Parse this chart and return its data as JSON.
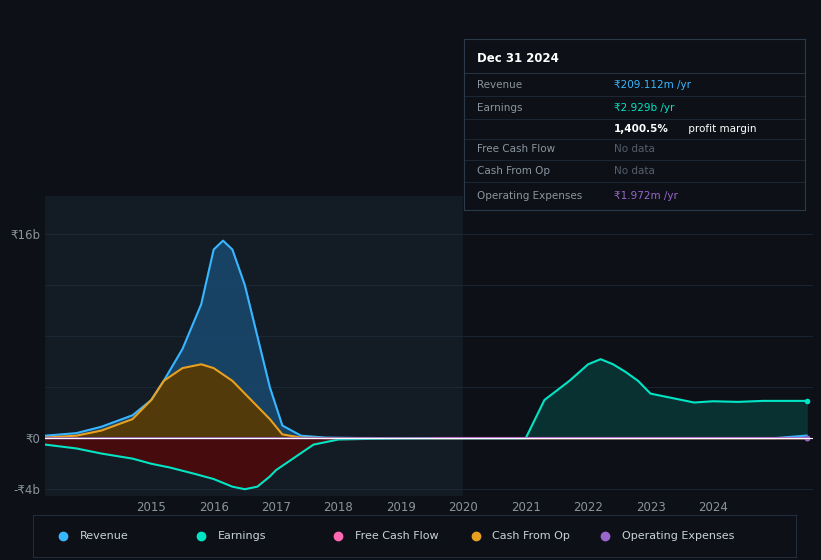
{
  "bg_color": "#0d1117",
  "plot_bg_color": "#131b24",
  "plot_bg_right": "#0d1117",
  "grid_color": "#1e2d3d",
  "text_color": "#8b949e",
  "zero_line_color": "#ffffff",
  "ylim_min": -4500000000,
  "ylim_max": 19000000000,
  "xlim_start": 2013.3,
  "xlim_end": 2025.6,
  "xticks": [
    2015,
    2016,
    2017,
    2018,
    2019,
    2020,
    2021,
    2022,
    2023,
    2024
  ],
  "ytick_neg4b_val": -4000000000,
  "ytick_0_val": 0,
  "ytick_16b_val": 16000000000,
  "revenue_color": "#38b6ff",
  "earnings_color": "#00e5c5",
  "cashflow_color": "#ff69b4",
  "cashfromop_color": "#e8a020",
  "opex_color": "#9966cc",
  "revenue_fill": "#1a4a70",
  "earnings_fill_pos": "#0a3535",
  "earnings_fill_neg": "#500a0a",
  "cashfromop_fill": "#5a3a00",
  "info_box_bg": "#0d1117",
  "info_box_border": "#2a3a4a",
  "revenue_x": [
    2013.3,
    2013.8,
    2014.2,
    2014.7,
    2015.0,
    2015.2,
    2015.5,
    2015.8,
    2016.0,
    2016.15,
    2016.3,
    2016.5,
    2016.7,
    2016.9,
    2017.1,
    2017.4,
    2017.8,
    2018.3,
    2019.0,
    2020.0,
    2021.0,
    2022.0,
    2023.0,
    2024.0,
    2025.0,
    2025.5
  ],
  "revenue_y": [
    0.2,
    0.4,
    0.9,
    1.8,
    3.0,
    4.5,
    7.0,
    10.5,
    14.8,
    15.5,
    14.8,
    12.0,
    8.0,
    4.0,
    1.0,
    0.2,
    0.05,
    0.02,
    0.01,
    0.01,
    0.01,
    0.01,
    0.01,
    0.01,
    0.01,
    0.209
  ],
  "earnings_x": [
    2013.3,
    2013.8,
    2014.2,
    2014.7,
    2015.0,
    2015.3,
    2015.7,
    2016.0,
    2016.3,
    2016.5,
    2016.7,
    2016.9,
    2017.0,
    2017.3,
    2017.6,
    2018.0,
    2018.5,
    2019.0,
    2019.5,
    2020.0,
    2020.3,
    2020.7,
    2021.0,
    2021.3,
    2021.7,
    2022.0,
    2022.2,
    2022.4,
    2022.6,
    2022.8,
    2023.0,
    2023.3,
    2023.7,
    2024.0,
    2024.4,
    2024.8,
    2025.0,
    2025.5
  ],
  "earnings_y": [
    -0.5,
    -0.8,
    -1.2,
    -1.6,
    -2.0,
    -2.3,
    -2.8,
    -3.2,
    -3.8,
    -4.0,
    -3.8,
    -3.0,
    -2.5,
    -1.5,
    -0.5,
    -0.1,
    -0.05,
    -0.02,
    -0.01,
    0.0,
    0.0,
    0.0,
    0.0,
    3.0,
    4.5,
    5.8,
    6.2,
    5.8,
    5.2,
    4.5,
    3.5,
    3.2,
    2.8,
    2.9,
    2.85,
    2.929,
    2.929,
    2.929
  ],
  "cashfromop_x": [
    2013.3,
    2013.8,
    2014.2,
    2014.7,
    2015.0,
    2015.2,
    2015.5,
    2015.8,
    2016.0,
    2016.3,
    2016.6,
    2016.9,
    2017.1,
    2017.4,
    2017.8,
    2018.3,
    2019.0,
    2020.0,
    2021.0,
    2022.0,
    2023.0,
    2024.0,
    2025.0,
    2025.5
  ],
  "cashfromop_y": [
    0.05,
    0.2,
    0.6,
    1.5,
    3.0,
    4.5,
    5.5,
    5.8,
    5.5,
    4.5,
    3.0,
    1.5,
    0.3,
    0.05,
    0.01,
    0.0,
    0.0,
    0.0,
    0.0,
    0.0,
    0.0,
    0.0,
    0.0,
    0.0
  ],
  "opex_x": [
    2013.3,
    2019.5,
    2020.0,
    2020.5,
    2021.0,
    2022.0,
    2023.0,
    2024.0,
    2025.0,
    2025.5
  ],
  "opex_y": [
    0.0,
    0.0,
    0.001,
    0.001,
    0.001,
    0.001,
    0.001,
    0.001,
    0.001,
    0.00197
  ],
  "cashflow_x": [
    2019.5,
    2020.0,
    2020.5,
    2021.0,
    2022.0,
    2023.0,
    2024.0,
    2025.0,
    2025.5
  ],
  "cashflow_y": [
    0.0,
    0.0,
    0.0,
    0.0,
    0.0,
    0.0,
    0.0,
    0.0,
    0.0
  ],
  "scale": 1000000000,
  "info_title": "Dec 31 2024",
  "info_rows": [
    {
      "label": "Revenue",
      "value": "₹209.112m /yr",
      "vcolor": "#38b6ff"
    },
    {
      "label": "Earnings",
      "value": "₹2.929b /yr",
      "vcolor": "#00e5c5"
    },
    {
      "label": "",
      "value_bold": "1,400.5%",
      "value_rest": " profit margin",
      "vcolor": "#ffffff"
    },
    {
      "label": "Free Cash Flow",
      "value": "No data",
      "vcolor": "#555e6b"
    },
    {
      "label": "Cash From Op",
      "value": "No data",
      "vcolor": "#555e6b"
    },
    {
      "label": "Operating Expenses",
      "value": "₹1.972m /yr",
      "vcolor": "#9966cc"
    }
  ],
  "legend": [
    {
      "label": "Revenue",
      "color": "#38b6ff"
    },
    {
      "label": "Earnings",
      "color": "#00e5c5"
    },
    {
      "label": "Free Cash Flow",
      "color": "#ff69b4"
    },
    {
      "label": "Cash From Op",
      "color": "#e8a020"
    },
    {
      "label": "Operating Expenses",
      "color": "#9966cc"
    }
  ]
}
